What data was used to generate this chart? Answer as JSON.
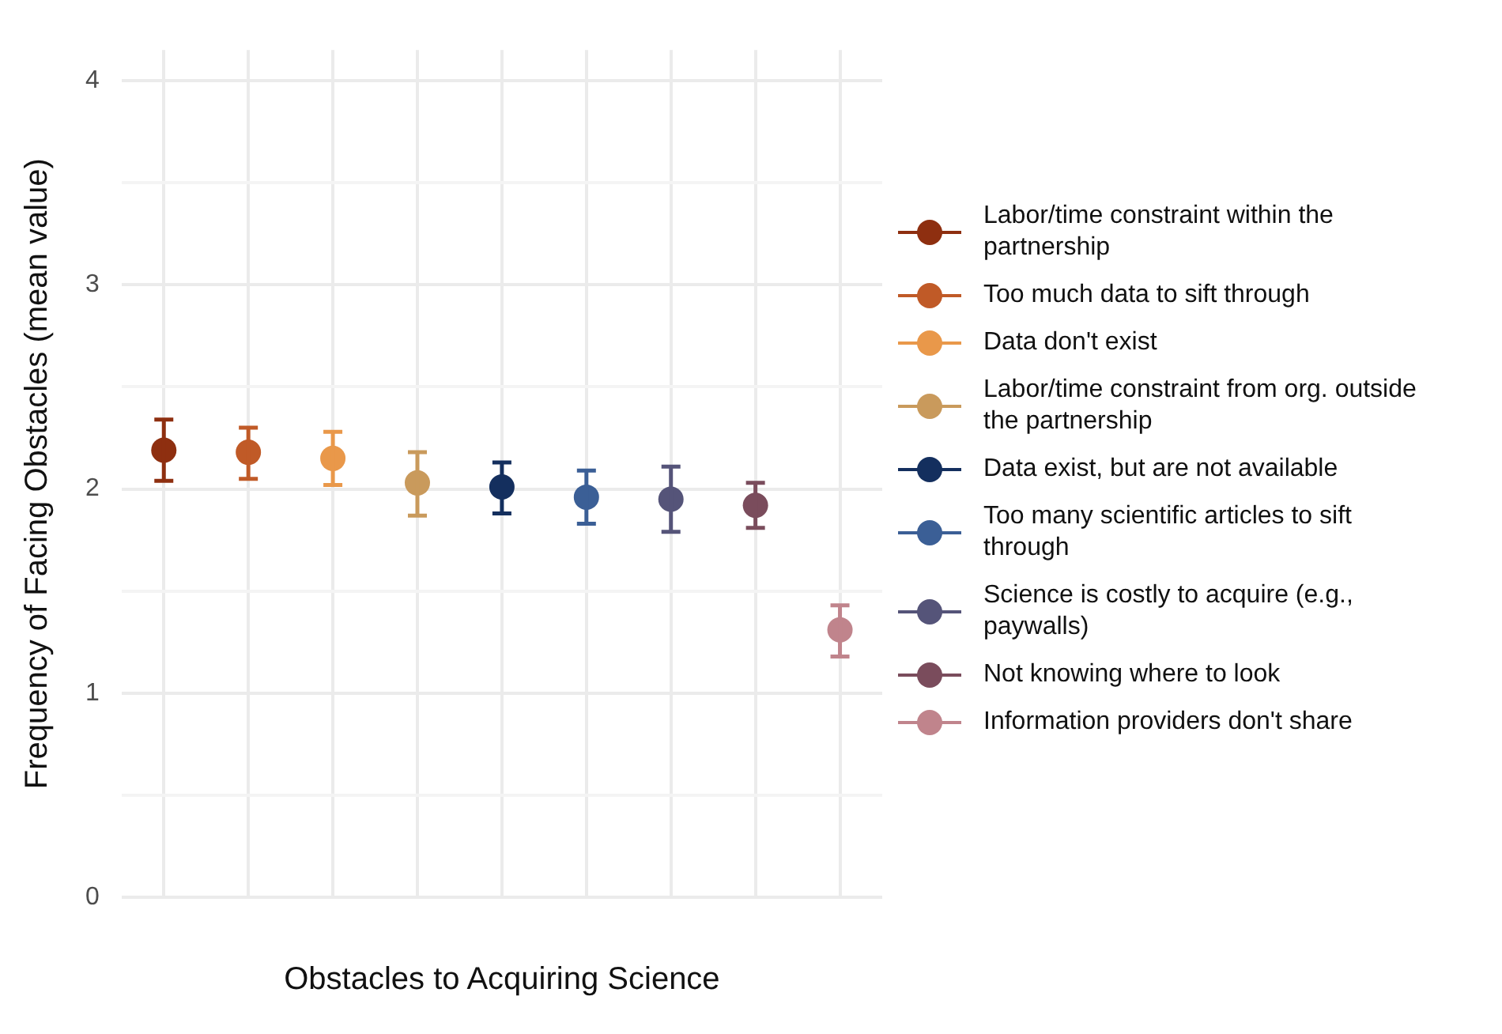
{
  "chart_data": {
    "type": "scatter",
    "xlabel": "Obstacles to Acquiring Science",
    "ylabel": "Frequency of Facing Obstacles (mean value)",
    "categories": [
      null,
      null,
      null,
      null,
      null,
      null,
      null,
      null,
      null
    ],
    "ylim": [
      0,
      4.15
    ],
    "yticks": [
      0,
      {
        "value": 0.5,
        "label": null
      },
      1,
      {
        "value": 1.5,
        "label": null
      },
      2,
      {
        "value": 2.5,
        "label": null
      },
      3,
      {
        "value": 3.5,
        "label": null
      },
      4
    ],
    "grid": true,
    "legend": "right",
    "marker": "circle",
    "series": [
      {
        "name": "Labor/time constraint within the partnership",
        "color": "#8e2f10",
        "values": [
          2.19,
          null,
          null,
          null,
          null,
          null,
          null,
          null,
          null
        ],
        "errors": [
          [
            2.04,
            2.34
          ],
          null,
          null,
          null,
          null,
          null,
          null,
          null,
          null
        ]
      },
      {
        "name": "Too much data to sift through",
        "color": "#c05a27",
        "values": [
          null,
          2.18,
          null,
          null,
          null,
          null,
          null,
          null,
          null
        ],
        "errors": [
          null,
          [
            2.05,
            2.3
          ],
          null,
          null,
          null,
          null,
          null,
          null,
          null
        ]
      },
      {
        "name": "Data don't exist",
        "color": "#e9984a",
        "values": [
          null,
          null,
          2.15,
          null,
          null,
          null,
          null,
          null,
          null
        ],
        "errors": [
          null,
          null,
          [
            2.02,
            2.28
          ],
          null,
          null,
          null,
          null,
          null,
          null
        ]
      },
      {
        "name": "Labor/time constraint from org. outside the partnership",
        "color": "#c99a5c",
        "values": [
          null,
          null,
          null,
          2.03,
          null,
          null,
          null,
          null,
          null
        ],
        "errors": [
          null,
          null,
          null,
          [
            1.87,
            2.18
          ],
          null,
          null,
          null,
          null,
          null
        ]
      },
      {
        "name": "Data exist, but are not available",
        "color": "#142f5e",
        "values": [
          null,
          null,
          null,
          null,
          2.01,
          null,
          null,
          null,
          null
        ],
        "errors": [
          null,
          null,
          null,
          null,
          [
            1.88,
            2.13
          ],
          null,
          null,
          null,
          null
        ]
      },
      {
        "name": "Too many scientific articles to sift through",
        "color": "#3b5f96",
        "values": [
          null,
          null,
          null,
          null,
          null,
          1.96,
          null,
          null,
          null
        ],
        "errors": [
          null,
          null,
          null,
          null,
          null,
          [
            1.83,
            2.09
          ],
          null,
          null,
          null
        ]
      },
      {
        "name": "Science is costly to acquire (e.g., paywalls)",
        "color": "#555479",
        "values": [
          null,
          null,
          null,
          null,
          null,
          null,
          1.95,
          null,
          null
        ],
        "errors": [
          null,
          null,
          null,
          null,
          null,
          null,
          [
            1.79,
            2.11
          ],
          null,
          null
        ]
      },
      {
        "name": "Not knowing where to look",
        "color": "#7a4c5c",
        "values": [
          null,
          null,
          null,
          null,
          null,
          null,
          null,
          1.92,
          null
        ],
        "errors": [
          null,
          null,
          null,
          null,
          null,
          null,
          null,
          [
            1.81,
            2.03
          ],
          null
        ]
      },
      {
        "name": "Information providers don't share",
        "color": "#c0848c",
        "values": [
          null,
          null,
          null,
          null,
          null,
          null,
          null,
          null,
          1.31
        ],
        "errors": [
          null,
          null,
          null,
          null,
          null,
          null,
          null,
          null,
          [
            1.18,
            1.43
          ]
        ]
      }
    ]
  }
}
